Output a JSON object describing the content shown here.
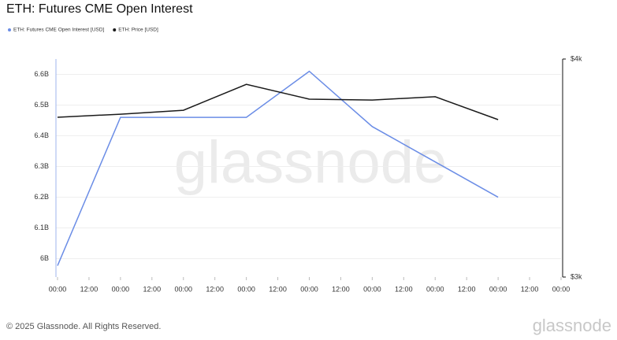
{
  "chart_data": {
    "type": "line",
    "title": "ETH: Futures CME Open Interest",
    "footer": "© 2025 Glassnode. All Rights Reserved.",
    "watermark": "glassnode",
    "x": [
      0,
      24,
      48,
      72,
      96,
      120,
      144,
      168
    ],
    "xlim": [
      0,
      192
    ],
    "xticks": [
      {
        "value": 0,
        "label": "00:00"
      },
      {
        "value": 12,
        "label": "12:00"
      },
      {
        "value": 24,
        "label": "00:00"
      },
      {
        "value": 36,
        "label": "12:00"
      },
      {
        "value": 48,
        "label": "00:00"
      },
      {
        "value": 60,
        "label": "12:00"
      },
      {
        "value": 72,
        "label": "00:00"
      },
      {
        "value": 84,
        "label": "12:00"
      },
      {
        "value": 96,
        "label": "00:00"
      },
      {
        "value": 108,
        "label": "12:00"
      },
      {
        "value": 120,
        "label": "00:00"
      },
      {
        "value": 132,
        "label": "12:00"
      },
      {
        "value": 144,
        "label": "00:00"
      },
      {
        "value": 156,
        "label": "12:00"
      },
      {
        "value": 168,
        "label": "00:00"
      },
      {
        "value": 180,
        "label": "12:00"
      },
      {
        "value": 192,
        "label": "00:00"
      }
    ],
    "ylim": [
      5.94,
      6.65
    ],
    "yticks": [
      {
        "value": 6,
        "label": "6B"
      },
      {
        "value": 6.1,
        "label": "6.1B"
      },
      {
        "value": 6.2,
        "label": "6.2B"
      },
      {
        "value": 6.3,
        "label": "6.3B"
      },
      {
        "value": 6.4,
        "label": "6.4B"
      },
      {
        "value": 6.5,
        "label": "6.5B"
      },
      {
        "value": 6.6,
        "label": "6.6B"
      }
    ],
    "y2lim": [
      3000,
      4000
    ],
    "y2ticks": [
      {
        "value": 3000,
        "label": "$3k"
      },
      {
        "value": 4000,
        "label": "$4k"
      }
    ],
    "grid": true,
    "series": [
      {
        "name": "ETH: Futures CME Open Interest [USD]",
        "color": "#6b8de6",
        "values": [
          5.977,
          6.46,
          6.46,
          6.46,
          6.61,
          6.43,
          6.315,
          6.2
        ]
      },
      {
        "name": "ETH: Price [USD]",
        "color": "#1a1a1a",
        "axis": "y2",
        "values": [
          3733,
          3747,
          3765,
          3884,
          3816,
          3812,
          3827,
          3722
        ]
      }
    ]
  }
}
